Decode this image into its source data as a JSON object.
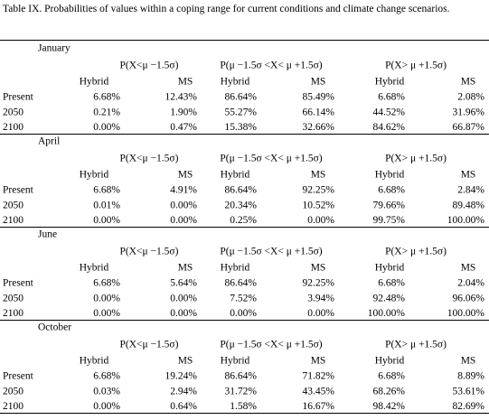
{
  "caption": "Table IX. Probabilities of values within a coping range for current conditions and climate change scenarios.",
  "sections": [
    {
      "month": "January",
      "groups": [
        "P(X<μ −1.5σ)",
        "P(μ −1.5σ <X< μ +1.5σ)",
        "P(X> μ +1.5σ)"
      ],
      "subheaders": [
        "Hybrid",
        "MS",
        "Hybrid",
        "MS",
        "Hybrid",
        "MS"
      ],
      "rows": [
        {
          "label": "Present",
          "values": [
            "6.68%",
            "12.43%",
            "86.64%",
            "85.49%",
            "6.68%",
            "2.08%"
          ]
        },
        {
          "label": "2050",
          "values": [
            "0.21%",
            "1.90%",
            "55.27%",
            "66.14%",
            "44.52%",
            "31.96%"
          ]
        },
        {
          "label": "2100",
          "values": [
            "0.00%",
            "0.47%",
            "15.38%",
            "32.66%",
            "84.62%",
            "66.87%"
          ]
        }
      ]
    },
    {
      "month": "April",
      "groups": [
        "P(X<μ −1.5σ)",
        "P(μ −1.5σ <X< μ +1.5σ)",
        "P(X> μ +1.5σ)"
      ],
      "subheaders": [
        "Hybrid",
        "MS",
        "Hybrid",
        "MS",
        "Hybrid",
        "MS"
      ],
      "rows": [
        {
          "label": "Present",
          "values": [
            "6.68%",
            "4.91%",
            "86.64%",
            "92.25%",
            "6.68%",
            "2.84%"
          ]
        },
        {
          "label": "2050",
          "values": [
            "0.01%",
            "0.00%",
            "20.34%",
            "10.52%",
            "79.66%",
            "89.48%"
          ]
        },
        {
          "label": "2100",
          "values": [
            "0.00%",
            "0.00%",
            "0.25%",
            "0.00%",
            "99.75%",
            "100.00%"
          ]
        }
      ]
    },
    {
      "month": "June",
      "groups": [
        "P(X<μ −1.5σ)",
        "P(μ −1.5σ <X< μ +1.5σ)",
        "P(X> μ +1.5σ)"
      ],
      "subheaders": [
        "Hybrid",
        "MS",
        "Hybrid",
        "MS",
        "Hybrid",
        "MS"
      ],
      "rows": [
        {
          "label": "Present",
          "values": [
            "6.68%",
            "5.64%",
            "86.64%",
            "92.25%",
            "6.68%",
            "2.04%"
          ]
        },
        {
          "label": "2050",
          "values": [
            "0.00%",
            "0.00%",
            "7.52%",
            "3.94%",
            "92.48%",
            "96.06%"
          ]
        },
        {
          "label": "2100",
          "values": [
            "0.00%",
            "0.00%",
            "0.00%",
            "0.00%",
            "100.00%",
            "100.00%"
          ]
        }
      ]
    },
    {
      "month": "October",
      "groups": [
        "P(X<μ −1.5σ)",
        "P(μ −1.5σ <X< μ +1.5σ)",
        "P(X> μ +1.5σ)"
      ],
      "subheaders": [
        "Hybrid",
        "MS",
        "Hybrid",
        "MS",
        "Hybrid",
        "MS"
      ],
      "rows": [
        {
          "label": "Present",
          "values": [
            "6.68%",
            "19.24%",
            "86.64%",
            "71.82%",
            "6.68%",
            "8.89%"
          ]
        },
        {
          "label": "2050",
          "values": [
            "0.03%",
            "2.94%",
            "31.72%",
            "43.45%",
            "68.26%",
            "53.61%"
          ]
        },
        {
          "label": "2100",
          "values": [
            "0.00%",
            "0.64%",
            "1.58%",
            "16.67%",
            "98.42%",
            "82.69%"
          ]
        }
      ]
    }
  ]
}
